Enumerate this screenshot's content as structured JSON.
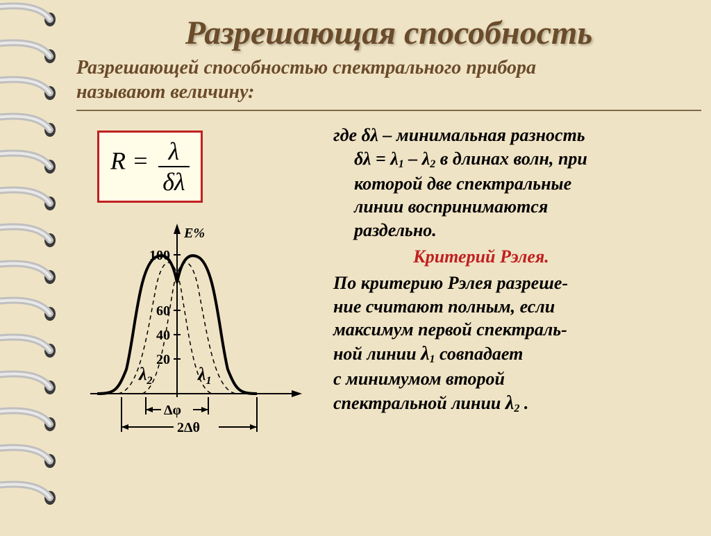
{
  "title": "Разрешающая  способность",
  "subtitle_line1": "Разрешающей  способностью  спектрального  прибора",
  "subtitle_line2": "называют  величину:",
  "formula": {
    "lhs": "R =",
    "num": "λ",
    "den": "δλ"
  },
  "desc": {
    "p1_a": "где  δλ – минимальная разность",
    "p1_b": "δλ = λ",
    "p1_b2": " – λ",
    "p1_b3": "   в длинах волн, при",
    "p1_c": "которой  две  спектральные",
    "p1_d": "линии воспринимаются",
    "p1_e": "раздельно.",
    "crit": "Критерий  Рэлея.",
    "p2_a": "По критерию Рэлея разреше-",
    "p2_b": "ние считают  полным, если",
    "p2_c": "максимум  первой спектраль-",
    "p2_d_a": "ной  линии    ",
    "p2_d_b": "    совпадает",
    "p2_e": "с  минимумом второй",
    "p2_f_a": "спектральной линии    ",
    "p2_f_b": " ."
  },
  "graph": {
    "y_label": "E%",
    "y_ticks": [
      "100",
      "60",
      "40",
      "20"
    ],
    "x_label_left": "Δφ",
    "x_label_right": "2Δθ",
    "lambda1": "λ",
    "lambda1_sub": "1",
    "lambda2": "λ",
    "lambda2_sub": "2",
    "stroke": "#000000",
    "curve_width": 4,
    "dash": "6,5"
  },
  "colors": {
    "bg": "#efe3c5",
    "title": "#6a4b2a",
    "red": "#c02020",
    "formula_bg": "#fffce8",
    "spiral_ring": "#bfbfbf",
    "spiral_hole": "#3a3a3a"
  }
}
